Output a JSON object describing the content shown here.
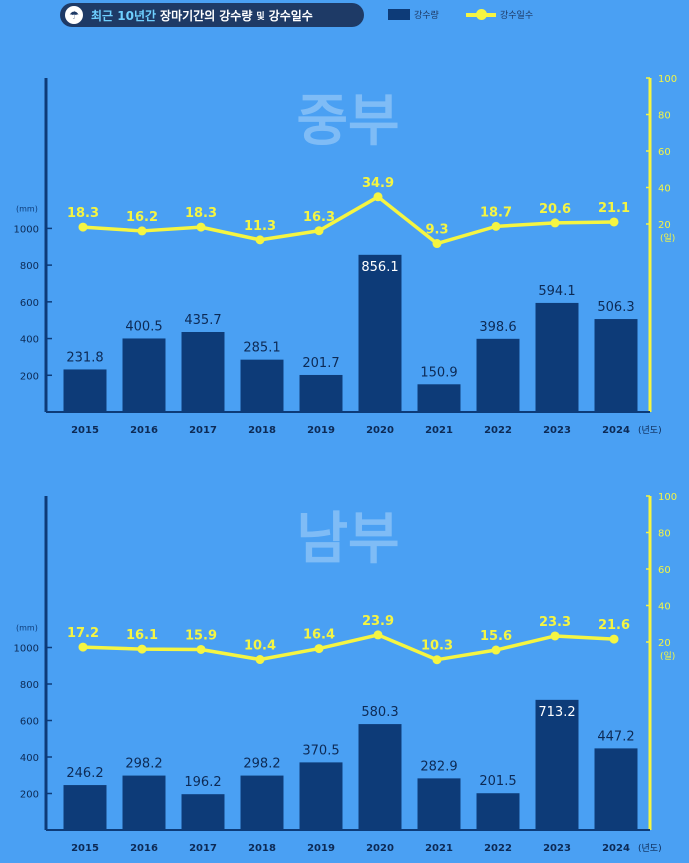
{
  "header": {
    "title_highlight": "최근 10년간",
    "title_main": "장마기간의",
    "title_a": "강수량",
    "title_and": "및",
    "title_b": "강수일수",
    "umbrella_icon": "umbrella-icon"
  },
  "legend": {
    "bar_label": "강수량",
    "line_label": "강수일수"
  },
  "colors": {
    "background": "#4aa0f3",
    "bar": "#0d3b78",
    "line": "#f5f542",
    "axis_left": "#0d3b78",
    "axis_right": "#f5f542",
    "watermark": "#7fbcf6"
  },
  "chart_data": [
    {
      "type": "bar",
      "title": "중부",
      "categories": [
        "2015",
        "2016",
        "2017",
        "2018",
        "2019",
        "2020",
        "2021",
        "2022",
        "2023",
        "2024"
      ],
      "series": [
        {
          "name": "강수량",
          "type": "bar",
          "axis": "left",
          "values": [
            231.8,
            400.5,
            435.7,
            285.1,
            201.7,
            856.1,
            150.9,
            398.6,
            594.1,
            506.3
          ]
        },
        {
          "name": "강수일수",
          "type": "line",
          "axis": "right",
          "values": [
            18.3,
            16.2,
            18.3,
            11.3,
            16.3,
            34.9,
            9.3,
            18.7,
            20.6,
            21.1
          ]
        }
      ],
      "ylabel": "(mm)",
      "y2label": "(일)",
      "xlabel": "(년도)",
      "ylim": [
        0,
        1000
      ],
      "y2lim": [
        0,
        100
      ],
      "yticks": [
        200,
        400,
        600,
        800,
        1000
      ],
      "y2ticks": [
        20,
        40,
        60,
        80,
        100
      ],
      "legend": "top"
    },
    {
      "type": "bar",
      "title": "남부",
      "categories": [
        "2015",
        "2016",
        "2017",
        "2018",
        "2019",
        "2020",
        "2021",
        "2022",
        "2023",
        "2024"
      ],
      "series": [
        {
          "name": "강수량",
          "type": "bar",
          "axis": "left",
          "values": [
            246.2,
            298.2,
            196.2,
            298.2,
            370.5,
            580.3,
            282.9,
            201.5,
            713.2,
            447.2
          ]
        },
        {
          "name": "강수일수",
          "type": "line",
          "axis": "right",
          "values": [
            17.2,
            16.1,
            15.9,
            10.4,
            16.4,
            23.9,
            10.3,
            15.6,
            23.3,
            21.6
          ]
        }
      ],
      "ylabel": "(mm)",
      "y2label": "(일)",
      "xlabel": "(년도)",
      "ylim": [
        0,
        1000
      ],
      "y2lim": [
        0,
        100
      ],
      "yticks": [
        200,
        400,
        600,
        800,
        1000
      ],
      "y2ticks": [
        20,
        40,
        60,
        80,
        100
      ],
      "legend": "top"
    }
  ]
}
